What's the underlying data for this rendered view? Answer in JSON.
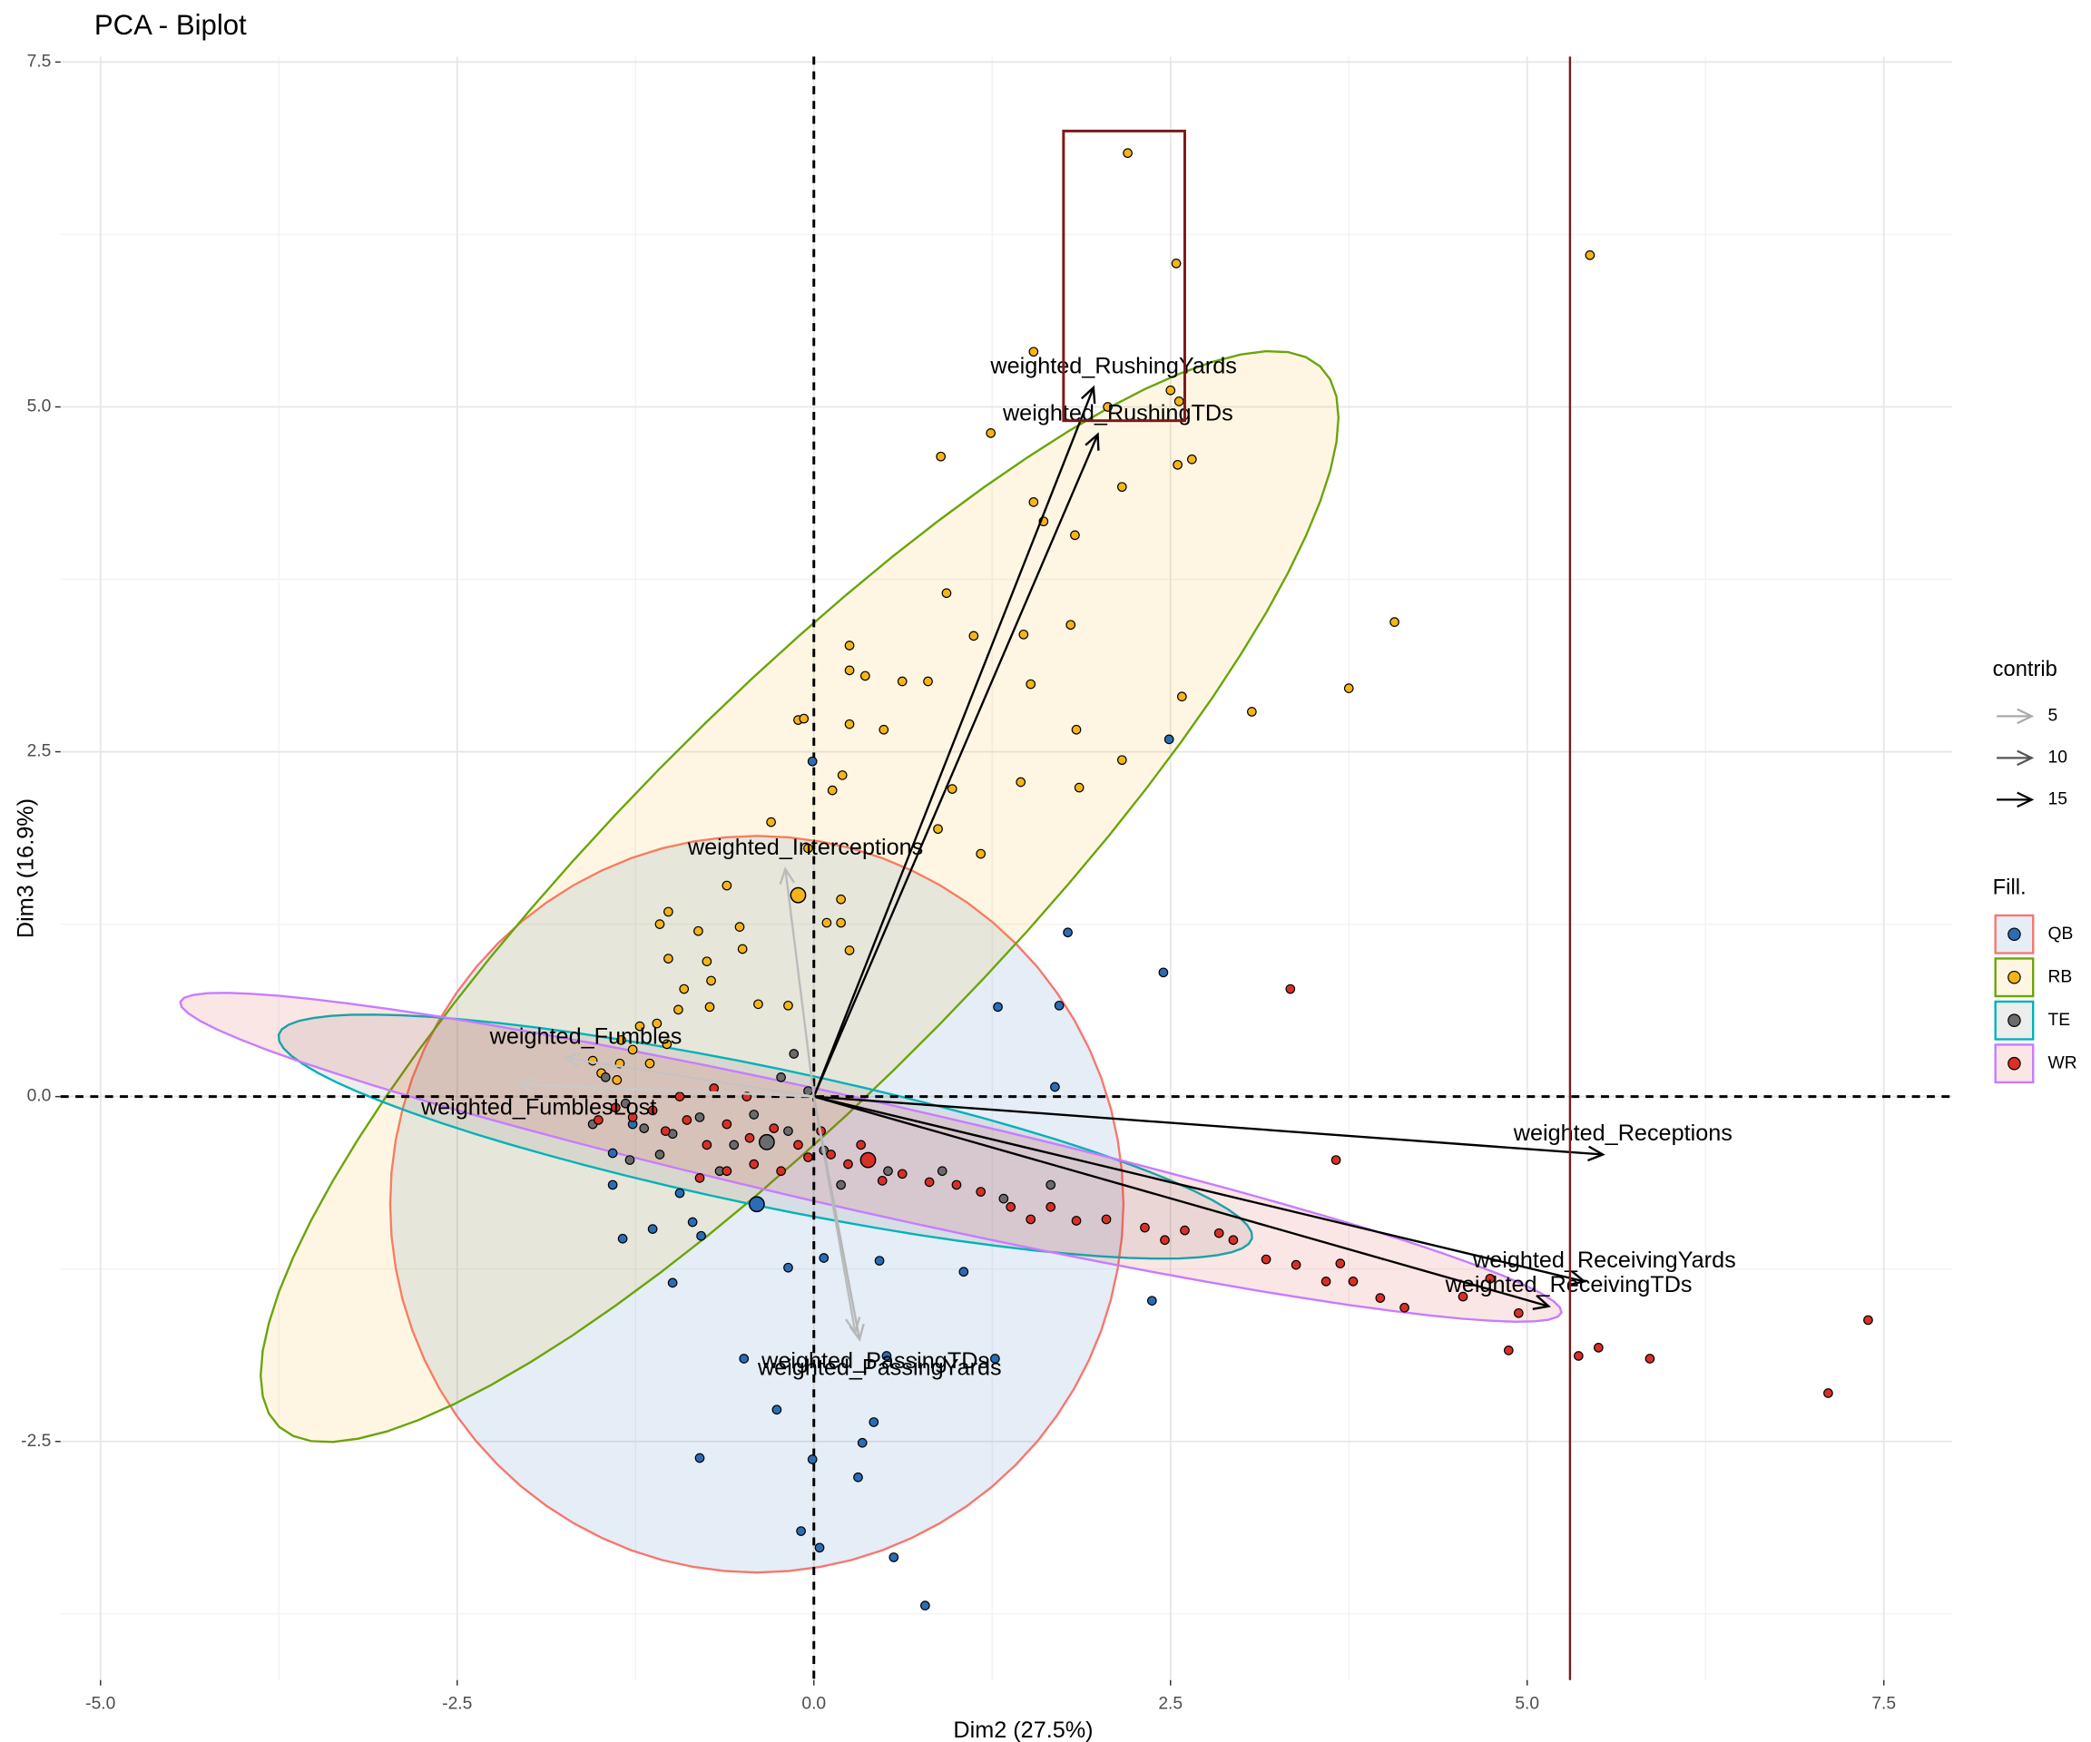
{
  "chart_data": {
    "type": "biplot",
    "title": "PCA - Biplot",
    "xlabel": "Dim2 (27.5%)",
    "ylabel": "Dim3 (16.9%)",
    "xlim": [
      -5.28,
      7.98
    ],
    "ylim": [
      -4.23,
      7.54
    ],
    "xticks": [
      {
        "value": -5,
        "label": "-5.0"
      },
      {
        "value": -2.5,
        "label": "-2.5"
      },
      {
        "value": 0,
        "label": "0.0"
      },
      {
        "value": 2.5,
        "label": "2.5"
      },
      {
        "value": 5,
        "label": "5.0"
      },
      {
        "value": 7.5,
        "label": "7.5"
      }
    ],
    "yticks": [
      {
        "value": -2.5,
        "label": "-2.5"
      },
      {
        "value": 0,
        "label": "0.0"
      },
      {
        "value": 2.5,
        "label": "2.5"
      },
      {
        "value": 5,
        "label": "5.0"
      },
      {
        "value": 7.5,
        "label": "7.5"
      }
    ],
    "xminor": [
      -3.75,
      -1.25,
      1.25,
      3.75,
      6.25
    ],
    "yminor": [
      -3.75,
      -1.25,
      1.25,
      3.75,
      6.25
    ],
    "grid": true,
    "series": [
      {
        "name": "QB",
        "color": "#2b6cb5",
        "ellipse_color": "#f8766d",
        "ellipse": {
          "cx": -0.4,
          "cy": -0.78,
          "a": 2.57,
          "b": 2.67,
          "angle": 0
        },
        "centroid": [
          -0.4,
          -0.78
        ],
        "x": [
          1.78,
          2.45,
          1.72,
          1.29,
          2.49,
          1.69,
          -0.18,
          0.07,
          0.46,
          1.05,
          2.37,
          1.27,
          0.51,
          -0.49,
          -0.26,
          0.42,
          0.34,
          -0.8,
          0.31,
          -0.01,
          -0.09,
          0.04,
          0.56,
          0.78,
          -1.34,
          -1.13,
          -0.85,
          -0.79,
          -0.99,
          -1.41,
          -0.94,
          -0.01,
          -1.41,
          -1.27
        ],
        "y": [
          1.19,
          0.9,
          0.66,
          0.65,
          2.59,
          0.07,
          -1.24,
          -1.17,
          -1.19,
          -1.27,
          -1.48,
          -1.9,
          -1.88,
          -1.9,
          -2.27,
          -2.36,
          -2.51,
          -2.62,
          -2.76,
          -2.63,
          -3.15,
          -3.27,
          -3.34,
          -3.69,
          -1.03,
          -0.96,
          -0.91,
          -1.01,
          -1.35,
          -0.64,
          -0.7,
          2.43,
          -0.41,
          -0.2
        ]
      },
      {
        "name": "RB",
        "color": "#f4b41a",
        "ellipse_color": "#6aa40a",
        "ellipse": {
          "cx": -0.1,
          "cy": 1.45,
          "a": 5.3,
          "b": 1.35,
          "angle": 46.5
        },
        "centroid": [
          -0.11,
          1.46
        ],
        "x": [
          2.2,
          2.54,
          5.44,
          1.54,
          2.5,
          2.56,
          1.24,
          2.06,
          0.89,
          2.55,
          2.65,
          2.16,
          1.54,
          1.61,
          1.83,
          0.93,
          1.12,
          1.47,
          1.8,
          4.07,
          0.25,
          0.25,
          0.36,
          0.62,
          0.8,
          1.52,
          2.58,
          3.07,
          3.75,
          0.25,
          0.49,
          -0.11,
          -0.07,
          1.84,
          2.16,
          1.45,
          0.97,
          1.86,
          0.2,
          0.13,
          -0.3,
          0.87,
          1.17,
          -0.61,
          -1.02,
          -1.08,
          -0.81,
          -0.52,
          0.19,
          0.09,
          0.19,
          -0.5,
          0.25,
          -1.02,
          -0.75,
          -0.72,
          -0.91,
          -0.39,
          -0.18,
          -0.95,
          -0.73,
          -1.22,
          -1.1,
          -1.35,
          -1.27,
          -1.36,
          -1.49,
          -1.55,
          -1.38,
          -1.15,
          -1.03,
          -0.04
        ],
        "y": [
          6.84,
          6.04,
          6.1,
          5.4,
          5.12,
          5.04,
          4.81,
          5.0,
          4.64,
          4.58,
          4.62,
          4.42,
          4.31,
          4.17,
          4.07,
          3.65,
          3.34,
          3.35,
          3.42,
          3.44,
          3.27,
          3.09,
          3.05,
          3.01,
          3.01,
          2.99,
          2.9,
          2.79,
          2.96,
          2.7,
          2.66,
          2.73,
          2.74,
          2.66,
          2.44,
          2.28,
          2.23,
          2.24,
          2.33,
          2.22,
          1.99,
          1.94,
          1.76,
          1.53,
          1.34,
          1.25,
          1.2,
          1.23,
          1.43,
          1.26,
          1.26,
          1.07,
          1.06,
          1.0,
          0.98,
          0.84,
          0.78,
          0.67,
          0.66,
          0.63,
          0.65,
          0.51,
          0.53,
          0.41,
          0.34,
          0.24,
          0.17,
          0.26,
          0.12,
          0.24,
          0.38,
          1.8
        ]
      },
      {
        "name": "TE",
        "color": "#6b6b6b",
        "ellipse_color": "#00b2b8",
        "ellipse": {
          "cx": -0.34,
          "cy": -0.29,
          "a": 3.49,
          "b": 0.5,
          "angle": -12.2
        },
        "centroid": [
          -0.33,
          -0.33
        ],
        "x": [
          -1.55,
          -1.32,
          -0.99,
          -0.8,
          -0.56,
          -0.42,
          -0.18,
          -0.04,
          0.07,
          -1.19,
          -1.08,
          -0.66,
          1.33,
          0.9,
          -0.23,
          -0.14,
          1.66,
          -1.46,
          -1.29,
          0.19,
          0.52
        ],
        "y": [
          -0.2,
          -0.05,
          -0.27,
          -0.15,
          -0.35,
          -0.13,
          -0.25,
          0.04,
          -0.39,
          -0.23,
          -0.42,
          -0.54,
          -0.74,
          -0.54,
          0.14,
          0.31,
          -0.64,
          0.14,
          -0.46,
          -0.64,
          -0.54
        ]
      },
      {
        "name": "WR",
        "color": "#d73027",
        "ellipse_color": "#c77cff",
        "ellipse": {
          "cx": 0.4,
          "cy": -0.44,
          "a": 4.97,
          "b": 0.4,
          "angle": -13.1
        },
        "centroid": [
          0.38,
          -0.46
        ],
        "x": [
          7.39,
          7.11,
          5.86,
          5.5,
          5.36,
          4.87,
          4.94,
          4.74,
          4.55,
          4.14,
          3.97,
          3.78,
          3.69,
          3.59,
          3.38,
          3.17,
          2.94,
          2.84,
          2.6,
          2.46,
          2.32,
          2.05,
          1.84,
          1.66,
          1.52,
          1.38,
          1.17,
          1.0,
          0.81,
          0.62,
          0.48,
          0.24,
          0.12,
          3.34,
          3.66,
          -0.11,
          -0.28,
          -0.45,
          -0.61,
          -0.75,
          -0.89,
          -1.04,
          -1.13,
          -1.27,
          -1.39,
          -1.51,
          -0.42,
          -0.61,
          -0.8,
          -0.23,
          -0.04,
          0.05,
          -0.94,
          -0.7,
          -0.47,
          0.33
        ],
        "y": [
          -1.62,
          -2.15,
          -1.9,
          -1.82,
          -1.88,
          -1.84,
          -1.57,
          -1.32,
          -1.45,
          -1.53,
          -1.46,
          -1.34,
          -1.21,
          -1.34,
          -1.22,
          -1.18,
          -1.04,
          -0.99,
          -0.97,
          -1.04,
          -0.95,
          -0.89,
          -0.9,
          -0.8,
          -0.89,
          -0.8,
          -0.69,
          -0.64,
          -0.62,
          -0.56,
          -0.61,
          -0.49,
          -0.42,
          0.78,
          -0.46,
          -0.35,
          -0.23,
          -0.3,
          -0.2,
          -0.35,
          -0.17,
          -0.25,
          -0.1,
          -0.15,
          -0.08,
          -0.17,
          -0.49,
          -0.54,
          -0.59,
          -0.54,
          -0.44,
          -0.25,
          0.0,
          0.06,
          0.0,
          -0.35
        ]
      }
    ],
    "variables": [
      {
        "name": "weighted_RushingYards",
        "x": 1.96,
        "y": 5.14,
        "contrib": 15.5
      },
      {
        "name": "weighted_RushingTDs",
        "x": 1.99,
        "y": 4.8,
        "contrib": 15
      },
      {
        "name": "weighted_Interceptions",
        "x": -0.2,
        "y": 1.65,
        "contrib": 4
      },
      {
        "name": "weighted_Fumbles",
        "x": -1.74,
        "y": 0.28,
        "contrib": 3.5
      },
      {
        "name": "weighted_FumblesLost",
        "x": -2.07,
        "y": 0.09,
        "contrib": 3.2
      },
      {
        "name": "weighted_Receptions",
        "x": 5.53,
        "y": -0.42,
        "contrib": 16
      },
      {
        "name": "weighted_ReceivingYards",
        "x": 5.4,
        "y": -1.34,
        "contrib": 16
      },
      {
        "name": "weighted_ReceivingTDs",
        "x": 5.15,
        "y": -1.52,
        "contrib": 15
      },
      {
        "name": "weighted_PassingTDs",
        "x": 0.29,
        "y": -1.71,
        "contrib": 4
      },
      {
        "name": "weighted_PassingYards",
        "x": 0.32,
        "y": -1.76,
        "contrib": 4.3
      }
    ],
    "contrib_legend": {
      "title": "contrib",
      "breaks": [
        5,
        10,
        15
      ]
    },
    "fill_legend": {
      "title": "Fill."
    },
    "annotations": {
      "color": "#7b1a1a",
      "vline": 5.3,
      "rect": {
        "x0": 1.75,
        "x1": 2.6,
        "y0": 4.9,
        "y1": 7.0
      }
    }
  }
}
